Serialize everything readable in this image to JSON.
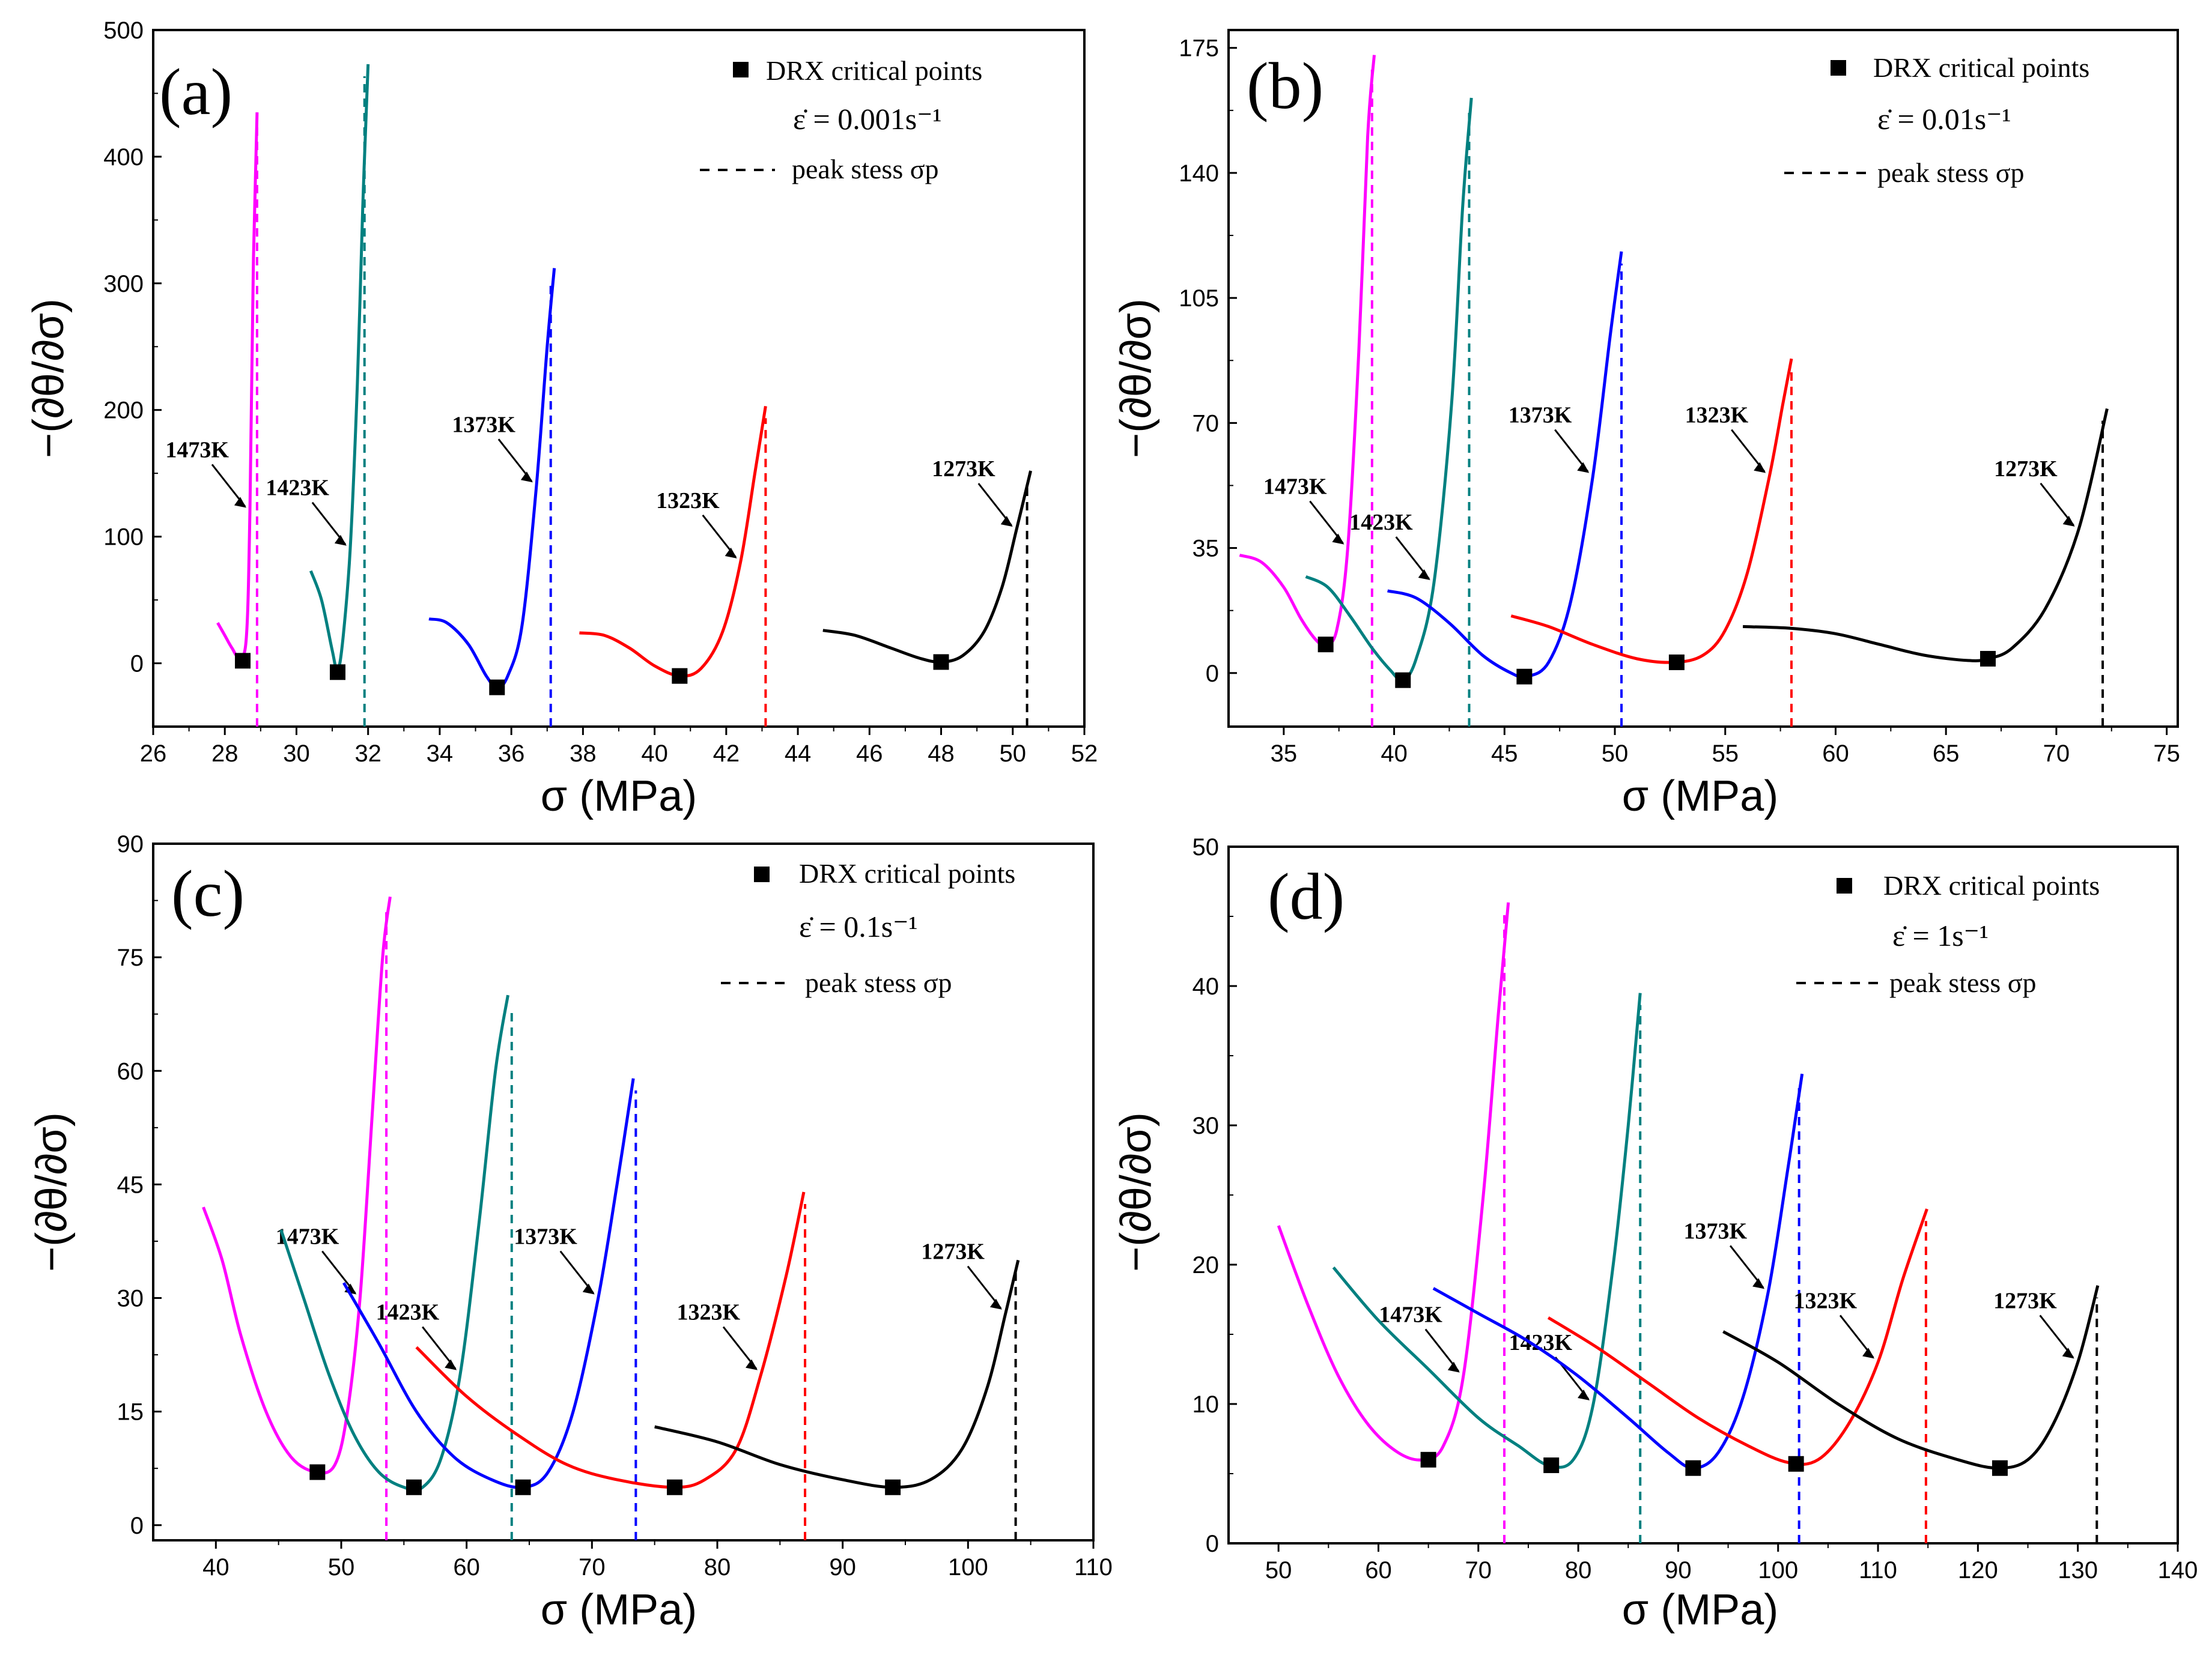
{
  "chart_data": [
    {
      "type": "line",
      "panel_label": "(a)",
      "xlabel": "σ (MPa)",
      "ylabel": "−(∂θ/∂σ)",
      "xlim": [
        26,
        52
      ],
      "ylim": [
        -50,
        500
      ],
      "xticks": [
        26,
        28,
        30,
        32,
        34,
        36,
        38,
        40,
        42,
        44,
        46,
        48,
        50,
        52
      ],
      "yticks": [
        0,
        100,
        200,
        300,
        400,
        500
      ],
      "legend": {
        "marker_label": "DRX critical points",
        "rate_label": "ε̇ = 0.001s⁻¹",
        "line_label": "peak stess σp"
      },
      "series": [
        {
          "name": "1473K",
          "color": "#ff00ff",
          "x": [
            27.8,
            28.0,
            28.2,
            28.4,
            28.6,
            28.7,
            28.8,
            28.9
          ],
          "y": [
            32,
            22,
            12,
            5,
            20,
            120,
            320,
            435
          ],
          "critical_point": [
            28.5,
            2
          ],
          "peak_stress": 28.9
        },
        {
          "name": "1423K",
          "color": "#008080",
          "x": [
            30.4,
            30.7,
            31.0,
            31.15,
            31.3,
            31.5,
            31.7,
            31.85,
            32.0
          ],
          "y": [
            73,
            50,
            10,
            -6,
            20,
            90,
            220,
            360,
            473
          ],
          "critical_point": [
            31.15,
            -7
          ],
          "peak_stress": 31.9
        },
        {
          "name": "1373K",
          "color": "#0000ff",
          "x": [
            33.7,
            34.2,
            34.8,
            35.3,
            35.6,
            35.9,
            36.3,
            36.7,
            37.0,
            37.2
          ],
          "y": [
            35,
            32,
            15,
            -10,
            -19,
            -10,
            30,
            140,
            250,
            312
          ],
          "critical_point": [
            35.6,
            -19
          ],
          "peak_stress": 37.1
        },
        {
          "name": "1323K",
          "color": "#ff0000",
          "x": [
            37.9,
            38.6,
            39.3,
            40.0,
            40.7,
            41.3,
            41.9,
            42.4,
            42.8,
            43.1
          ],
          "y": [
            24,
            22,
            12,
            -2,
            -10,
            -4,
            25,
            80,
            150,
            203
          ],
          "critical_point": [
            40.7,
            -10
          ],
          "peak_stress": 43.1
        },
        {
          "name": "1273K",
          "color": "#000000",
          "x": [
            44.7,
            45.6,
            46.6,
            47.4,
            48.0,
            48.6,
            49.2,
            49.7,
            50.1,
            50.5
          ],
          "y": [
            26,
            22,
            12,
            4,
            1,
            6,
            25,
            60,
            105,
            152
          ],
          "critical_point": [
            48.0,
            1
          ],
          "peak_stress": 50.4
        }
      ]
    },
    {
      "type": "line",
      "panel_label": "(b)",
      "xlabel": "σ (MPa)",
      "ylabel": "−(∂θ/∂σ)",
      "xlim": [
        32.5,
        75.5
      ],
      "ylim": [
        -15,
        180
      ],
      "xticks": [
        35,
        40,
        45,
        50,
        55,
        60,
        65,
        70,
        75
      ],
      "yticks": [
        0,
        35,
        70,
        105,
        140,
        175
      ],
      "legend": {
        "marker_label": "DRX critical points",
        "rate_label": "ε̇ = 0.01s⁻¹",
        "line_label": "peak stess σp"
      },
      "series": [
        {
          "name": "1473K",
          "color": "#ff00ff",
          "x": [
            33.0,
            34.0,
            35.0,
            35.8,
            36.5,
            36.9,
            37.4,
            37.9,
            38.4,
            38.8,
            39.1
          ],
          "y": [
            33,
            31,
            24,
            15,
            9,
            8,
            12,
            35,
            90,
            150,
            173
          ],
          "critical_point": [
            36.9,
            8
          ],
          "peak_stress": 39.0
        },
        {
          "name": "1423K",
          "color": "#008080",
          "x": [
            36.0,
            37.0,
            38.0,
            39.0,
            39.8,
            40.4,
            41.0,
            41.8,
            42.6,
            43.1,
            43.5
          ],
          "y": [
            27,
            24,
            16,
            7,
            1,
            -2,
            4,
            25,
            75,
            130,
            161
          ],
          "critical_point": [
            40.4,
            -2
          ],
          "peak_stress": 43.4
        },
        {
          "name": "1373K",
          "color": "#0000ff",
          "x": [
            39.7,
            41.0,
            42.5,
            44.0,
            45.3,
            46.0,
            47.0,
            48.0,
            49.0,
            49.8,
            50.3
          ],
          "y": [
            23,
            21,
            14,
            5,
            0,
            -1,
            3,
            20,
            55,
            95,
            118
          ],
          "critical_point": [
            45.9,
            -1
          ],
          "peak_stress": 50.3
        },
        {
          "name": "1323K",
          "color": "#ff0000",
          "x": [
            45.3,
            47.0,
            49.0,
            51.0,
            52.7,
            54.0,
            55.0,
            56.0,
            57.0,
            57.6,
            58.0
          ],
          "y": [
            16,
            13,
            8,
            4,
            3,
            5,
            12,
            28,
            55,
            75,
            88
          ],
          "critical_point": [
            52.8,
            3
          ],
          "peak_stress": 58.0
        },
        {
          "name": "1273K",
          "color": "#000000",
          "x": [
            55.8,
            58.0,
            60.0,
            62.0,
            64.0,
            66.0,
            66.9,
            68.0,
            69.5,
            71.0,
            72.3
          ],
          "y": [
            13,
            12.5,
            11,
            8,
            5,
            3.5,
            4,
            7,
            18,
            40,
            74
          ],
          "critical_point": [
            66.9,
            4
          ],
          "peak_stress": 72.1
        }
      ]
    },
    {
      "type": "line",
      "panel_label": "(c)",
      "xlabel": "σ (MPa)",
      "ylabel": "−(∂θ/∂σ)",
      "xlim": [
        35,
        110
      ],
      "ylim": [
        -2,
        90
      ],
      "xticks": [
        40,
        50,
        60,
        70,
        80,
        90,
        100,
        110
      ],
      "yticks": [
        0,
        15,
        30,
        45,
        60,
        75,
        90
      ],
      "legend": {
        "marker_label": "DRX critical points",
        "rate_label": "ε̇ = 0.1s⁻¹",
        "line_label": "peak stess σp"
      },
      "series": [
        {
          "name": "1473K",
          "color": "#ff00ff",
          "x": [
            39.0,
            40.5,
            42.0,
            44.0,
            46.0,
            48.0,
            49.5,
            50.5,
            51.5,
            52.5,
            53.3,
            53.9
          ],
          "y": [
            42,
            35,
            25,
            15,
            9,
            7,
            8,
            15,
            30,
            55,
            75,
            83
          ],
          "critical_point": [
            48.1,
            7
          ],
          "peak_stress": 53.6
        },
        {
          "name": "1423K",
          "color": "#008080",
          "x": [
            45.2,
            47.0,
            49.0,
            51.0,
            53.0,
            55.0,
            56.5,
            58.0,
            59.5,
            61.0,
            62.3,
            63.3
          ],
          "y": [
            39,
            30,
            20,
            12,
            7,
            5,
            5,
            9,
            20,
            40,
            60,
            70
          ],
          "critical_point": [
            55.8,
            5
          ],
          "peak_stress": 63.6
        },
        {
          "name": "1373K",
          "color": "#0000ff",
          "x": [
            50.2,
            53.0,
            56.0,
            59.0,
            62.0,
            64.5,
            66.5,
            68.5,
            70.5,
            72.0,
            73.3
          ],
          "y": [
            32,
            24,
            15,
            9,
            6,
            5,
            7,
            15,
            30,
            45,
            59
          ],
          "critical_point": [
            64.5,
            5
          ],
          "peak_stress": 73.5
        },
        {
          "name": "1323K",
          "color": "#ff0000",
          "x": [
            56.0,
            60.0,
            64.0,
            68.0,
            72.0,
            76.5,
            79.0,
            81.5,
            83.5,
            85.5,
            86.9
          ],
          "y": [
            23.5,
            17,
            12,
            8,
            6,
            5,
            6,
            10,
            20,
            33,
            44
          ],
          "critical_point": [
            76.6,
            5
          ],
          "peak_stress": 87.0
        },
        {
          "name": "1273K",
          "color": "#000000",
          "x": [
            75.0,
            80.0,
            85.0,
            90.0,
            94.0,
            97.0,
            99.5,
            101.5,
            103.0,
            104.0
          ],
          "y": [
            13,
            11,
            8,
            6,
            5,
            6,
            10,
            18,
            28,
            35
          ],
          "critical_point": [
            94.0,
            5
          ],
          "peak_stress": 103.8
        }
      ]
    },
    {
      "type": "line",
      "panel_label": "(d)",
      "xlabel": "σ (MPa)",
      "ylabel": "−(∂θ/∂σ)",
      "xlim": [
        45,
        140
      ],
      "ylim": [
        0,
        50
      ],
      "xticks": [
        50,
        60,
        70,
        80,
        90,
        100,
        110,
        120,
        130,
        140
      ],
      "yticks": [
        0,
        10,
        20,
        30,
        40,
        50
      ],
      "legend": {
        "marker_label": "DRX critical points",
        "rate_label": "ε̇ = 1s⁻¹",
        "line_label": "peak stess σp"
      },
      "series": [
        {
          "name": "1473K",
          "color": "#ff00ff",
          "x": [
            50.0,
            53.0,
            56.0,
            59.0,
            62.0,
            64.5,
            66.5,
            68.5,
            70.5,
            72.0,
            73.0
          ],
          "y": [
            22.8,
            17,
            12,
            8.5,
            6.5,
            6,
            7,
            12,
            25,
            38,
            46
          ],
          "critical_point": [
            65.0,
            6
          ],
          "peak_stress": 72.6
        },
        {
          "name": "1423K",
          "color": "#008080",
          "x": [
            55.5,
            60.0,
            65.0,
            70.0,
            74.0,
            77.0,
            79.5,
            81.5,
            83.5,
            85.0,
            86.2
          ],
          "y": [
            19.8,
            16,
            12.5,
            9,
            7,
            5.6,
            6,
            10,
            20,
            30,
            39.5
          ],
          "critical_point": [
            77.3,
            5.6
          ],
          "peak_stress": 86.2
        },
        {
          "name": "1373K",
          "color": "#0000ff",
          "x": [
            65.5,
            70.0,
            75.0,
            80.0,
            85.0,
            89.0,
            91.5,
            94.0,
            96.5,
            99.0,
            101.0,
            102.4
          ],
          "y": [
            18.3,
            16.5,
            14.5,
            12,
            9,
            6.5,
            5.4,
            6.5,
            10.5,
            18,
            27,
            33.7
          ],
          "critical_point": [
            91.5,
            5.4
          ],
          "peak_stress": 102.1
        },
        {
          "name": "1323K",
          "color": "#ff0000",
          "x": [
            77.0,
            82.0,
            87.0,
            92.0,
            97.0,
            101.0,
            104.0,
            107.0,
            110.0,
            112.5,
            114.9
          ],
          "y": [
            16.2,
            14,
            11.5,
            9,
            7,
            5.8,
            6,
            8.5,
            13,
            19,
            24
          ],
          "critical_point": [
            101.8,
            5.7
          ],
          "peak_stress": 114.8
        },
        {
          "name": "1273K",
          "color": "#000000",
          "x": [
            94.5,
            100.0,
            106.0,
            112.0,
            118.0,
            122.0,
            125.0,
            127.5,
            130.0,
            132.0
          ],
          "y": [
            15.2,
            13,
            10,
            7.5,
            6,
            5.4,
            6,
            8.5,
            13,
            18.5
          ],
          "critical_point": [
            122.2,
            5.4
          ],
          "peak_stress": 131.9
        }
      ]
    }
  ]
}
